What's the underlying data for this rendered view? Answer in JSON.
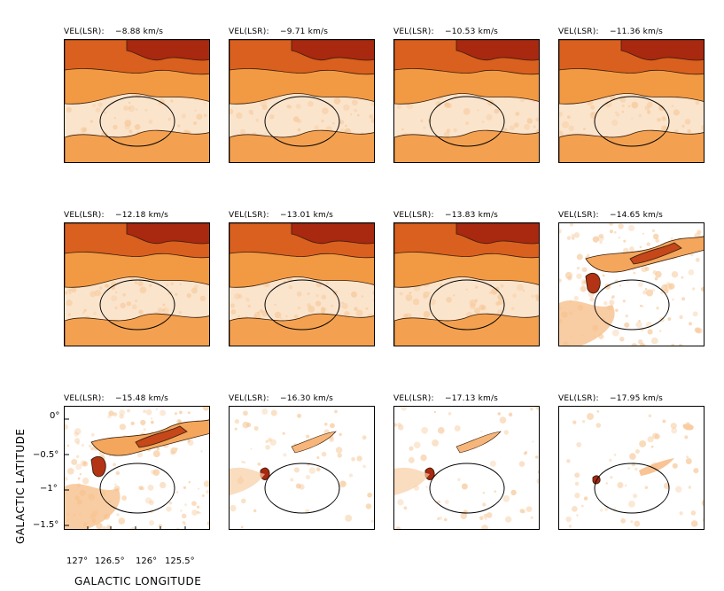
{
  "figure": {
    "velocity_prefix": "VEL(LSR):",
    "panels": [
      {
        "velocity": "−8.88 km/s",
        "level": 5
      },
      {
        "velocity": "−9.71 km/s",
        "level": 5
      },
      {
        "velocity": "−10.53 km/s",
        "level": 4
      },
      {
        "velocity": "−11.36 km/s",
        "level": 4
      },
      {
        "velocity": "−12.18 km/s",
        "level": 4
      },
      {
        "velocity": "−13.01 km/s",
        "level": 3
      },
      {
        "velocity": "−13.83 km/s",
        "level": 3
      },
      {
        "velocity": "−14.65 km/s",
        "level": 2
      },
      {
        "velocity": "−15.48 km/s",
        "level": 2
      },
      {
        "velocity": "−16.30 km/s",
        "level": 1
      },
      {
        "velocity": "−17.13 km/s",
        "level": 1
      },
      {
        "velocity": "−17.95 km/s",
        "level": 0
      }
    ],
    "y_axis_title": "GALACTIC LATITUDE",
    "x_axis_title": "GALACTIC LONGITUDE",
    "y_ticks": [
      "0°",
      "−0.5°",
      "−1°",
      "−1.5°"
    ],
    "x_ticks": [
      "127°",
      "126.5°",
      "126°",
      "125.5°"
    ]
  }
}
